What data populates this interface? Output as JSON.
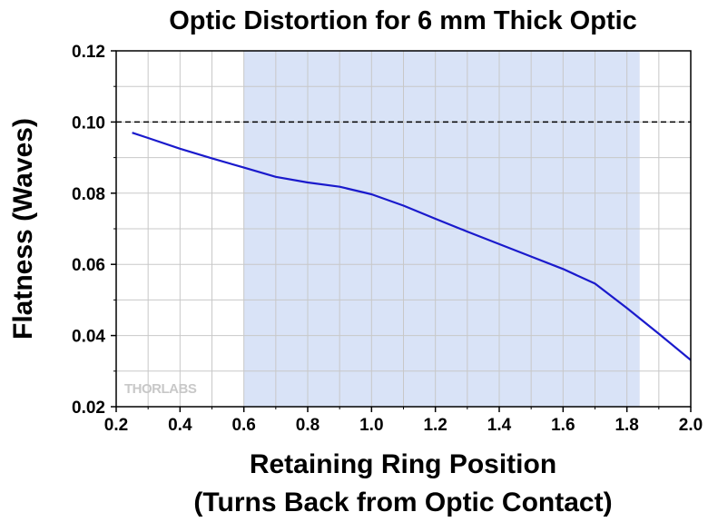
{
  "chart_data": {
    "type": "line",
    "title": "Optic Distortion for 6 mm Thick Optic",
    "xlabel_line1": "Retaining Ring Position",
    "xlabel_line2": "(Turns Back from Optic Contact)",
    "ylabel": "Flatness (Waves)",
    "xlim": [
      0.2,
      2.0
    ],
    "ylim": [
      0.02,
      0.12
    ],
    "x_ticks": [
      "0.2",
      "0.4",
      "0.6",
      "0.8",
      "1.0",
      "1.2",
      "1.4",
      "1.6",
      "1.8",
      "2.0"
    ],
    "y_ticks": [
      "0.02",
      "0.04",
      "0.06",
      "0.08",
      "0.10",
      "0.12"
    ],
    "grid": true,
    "highlight_region": {
      "x_start": 0.6,
      "x_end": 1.84,
      "color": "#d9e3f7"
    },
    "reference_line": {
      "y": 0.1,
      "style": "dashed",
      "color": "#000000"
    },
    "watermark": "THORLABS",
    "series": [
      {
        "color": "#1a1acc",
        "x": [
          0.25,
          0.3,
          0.4,
          0.5,
          0.6,
          0.7,
          0.8,
          0.9,
          1.0,
          1.1,
          1.2,
          1.3,
          1.4,
          1.5,
          1.6,
          1.7,
          1.8,
          1.9,
          2.0
        ],
        "y": [
          0.097,
          0.0955,
          0.0925,
          0.0898,
          0.0872,
          0.0846,
          0.083,
          0.0818,
          0.0797,
          0.0765,
          0.0728,
          0.0692,
          0.0657,
          0.0622,
          0.0587,
          0.0546,
          0.0477,
          0.0405,
          0.0331
        ]
      }
    ]
  }
}
